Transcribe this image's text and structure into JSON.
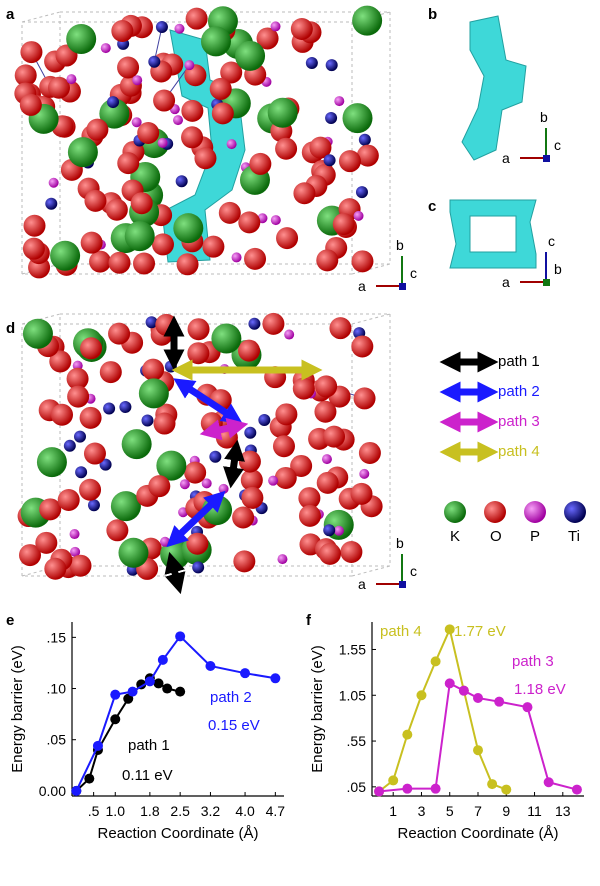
{
  "panels": {
    "a": "a",
    "b": "b",
    "c": "c",
    "d": "d",
    "e": "e",
    "f": "f"
  },
  "axes_triad": {
    "a": "a",
    "b": "b",
    "c": "c"
  },
  "path_legend": [
    {
      "label": "path 1",
      "color": "#000000"
    },
    {
      "label": "path 2",
      "color": "#1a1aff"
    },
    {
      "label": "path 3",
      "color": "#cc22cc"
    },
    {
      "label": "path 4",
      "color": "#c8c020"
    }
  ],
  "atom_legend": [
    {
      "label": "K",
      "color": "#138a13"
    },
    {
      "label": "O",
      "color": "#e01010"
    },
    {
      "label": "P",
      "color": "#d028d0"
    },
    {
      "label": "Ti",
      "color": "#10107a"
    }
  ],
  "chart_data": [
    {
      "type": "line",
      "panel": "e",
      "xlabel": "Reaction Coordinate (Å)",
      "ylabel": "Energy barrier (eV)",
      "xticks": [
        ".5",
        "1.0",
        "1.8",
        "2.5",
        "3.2",
        "4.0",
        "4.7"
      ],
      "xtick_values": [
        0.5,
        1.0,
        1.8,
        2.5,
        3.2,
        4.0,
        4.7
      ],
      "yticks": [
        "0.00",
        ".05",
        ".10",
        ".15"
      ],
      "ytick_values": [
        0.0,
        0.05,
        0.1,
        0.15
      ],
      "xlim": [
        0.0,
        4.9
      ],
      "ylim": [
        -0.005,
        0.165
      ],
      "series": [
        {
          "name": "path 1",
          "annotation": "0.11 eV",
          "color": "#000000",
          "x": [
            0.1,
            0.4,
            0.6,
            1.0,
            1.3,
            1.6,
            1.8,
            2.0,
            2.2,
            2.5
          ],
          "y": [
            0.0,
            0.012,
            0.04,
            0.07,
            0.09,
            0.104,
            0.11,
            0.105,
            0.1,
            0.097
          ]
        },
        {
          "name": "path 2",
          "annotation": "0.15 eV",
          "color": "#1a1aff",
          "x": [
            0.1,
            0.6,
            1.0,
            1.4,
            1.8,
            2.1,
            2.5,
            3.2,
            4.0,
            4.7
          ],
          "y": [
            0.0,
            0.044,
            0.094,
            0.097,
            0.107,
            0.128,
            0.151,
            0.122,
            0.115,
            0.11
          ]
        }
      ]
    },
    {
      "type": "line",
      "panel": "f",
      "xlabel": "Reaction Coordinate (Å)",
      "ylabel": "Energy barrier (eV)",
      "xticks": [
        "1",
        "3",
        "5",
        "7",
        "9",
        "11",
        "13"
      ],
      "xtick_values": [
        1,
        3,
        5,
        7,
        9,
        11,
        13
      ],
      "yticks": [
        ".05",
        ".55",
        "1.05",
        "1.55"
      ],
      "ytick_values": [
        0.05,
        0.55,
        1.05,
        1.55
      ],
      "xlim": [
        -0.5,
        14.5
      ],
      "ylim": [
        -0.05,
        1.85
      ],
      "series": [
        {
          "name": "path 4",
          "annotation": "1.77 eV",
          "color": "#c8c020",
          "x": [
            0,
            1,
            2,
            3,
            4,
            5,
            6,
            7,
            8,
            9
          ],
          "y": [
            0.0,
            0.12,
            0.62,
            1.05,
            1.42,
            1.77,
            1.1,
            0.45,
            0.08,
            0.02
          ]
        },
        {
          "name": "path 3",
          "annotation": "1.18 eV",
          "color": "#cc22cc",
          "x": [
            0,
            2,
            4,
            5,
            6,
            7,
            8.5,
            10.5,
            12,
            14
          ],
          "y": [
            0.0,
            0.03,
            0.03,
            1.18,
            1.1,
            1.02,
            0.98,
            0.92,
            0.1,
            0.02
          ]
        }
      ]
    }
  ]
}
